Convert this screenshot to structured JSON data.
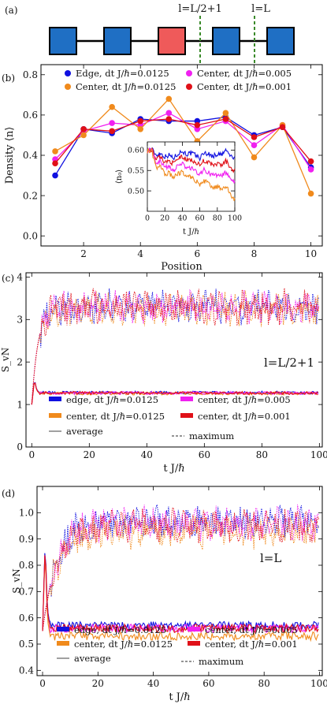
{
  "figure": {
    "panel_a_label": "(a)",
    "panel_b_label": "(b)",
    "panel_c_label": "(c)",
    "panel_d_label": "(d)",
    "marker_half": "l=L/2+1",
    "marker_end": "l=L"
  },
  "colors": {
    "site_blue": "#1f6fc4",
    "site_red": "#ef5a5a",
    "dashed_green": "#3a8a2a",
    "edge_blue": "#1010e0",
    "center_orange": "#f08a1c",
    "center_magenta": "#f020f0",
    "center_red": "#e01018",
    "average_gray": "#888888"
  },
  "chart_data": [
    {
      "type": "diagram",
      "sites": [
        "blue",
        "blue",
        "red",
        "blue",
        "blue"
      ],
      "markers": [
        "l=L/2+1",
        "l=L"
      ]
    },
    {
      "type": "line",
      "xlabel": "Position",
      "ylabel": "Density ⟨n⟩",
      "xlim": [
        0.5,
        10.4
      ],
      "ylim": [
        -0.05,
        0.85
      ],
      "xticks": [
        2,
        4,
        6,
        8,
        10
      ],
      "yticks": [
        0.0,
        0.2,
        0.4,
        0.6,
        0.8
      ],
      "legend_position": "top",
      "x": [
        1,
        2,
        3,
        4,
        5,
        6,
        7,
        8,
        9,
        10
      ],
      "series": [
        {
          "name": "Edge, dt J/ℏ=0.0125",
          "color": "#1010e0",
          "values": [
            0.3,
            0.53,
            0.51,
            0.58,
            0.57,
            0.57,
            0.59,
            0.5,
            0.54,
            0.34
          ]
        },
        {
          "name": "Center, dt J/ℏ=0.005",
          "color": "#f020f0",
          "values": [
            0.38,
            0.52,
            0.56,
            0.55,
            0.61,
            0.53,
            0.57,
            0.45,
            0.55,
            0.33
          ]
        },
        {
          "name": "Center, dt J/ℏ=0.0125",
          "color": "#f08a1c",
          "values": [
            0.42,
            0.5,
            0.64,
            0.53,
            0.68,
            0.47,
            0.61,
            0.39,
            0.55,
            0.21
          ]
        },
        {
          "name": "Center, dt J/ℏ=0.001",
          "color": "#e01018",
          "values": [
            0.36,
            0.53,
            0.52,
            0.57,
            0.58,
            0.55,
            0.58,
            0.49,
            0.54,
            0.37
          ]
        }
      ],
      "inset": {
        "type": "line",
        "xlabel": "t J/ℏ",
        "ylabel": "⟨n₀⟩",
        "xlim": [
          0,
          100
        ],
        "ylim": [
          0.45,
          0.62
        ],
        "xticks": [
          0,
          20,
          40,
          60,
          80,
          100
        ],
        "yticks": [
          0.5,
          0.55,
          0.6
        ],
        "x": [
          0,
          5,
          10,
          15,
          20,
          25,
          30,
          35,
          40,
          45,
          50,
          55,
          60,
          65,
          70,
          75,
          80,
          85,
          90,
          95,
          100
        ],
        "series": [
          {
            "name": "Edge, dt J/ℏ=0.0125",
            "color": "#1010e0",
            "values": [
              0.598,
              0.603,
              0.588,
              0.592,
              0.584,
              0.588,
              0.58,
              0.592,
              0.597,
              0.59,
              0.592,
              0.588,
              0.58,
              0.594,
              0.59,
              0.585,
              0.59,
              0.588,
              0.6,
              0.585,
              0.58
            ]
          },
          {
            "name": "Center, dt J/ℏ=0.001",
            "color": "#e01018",
            "values": [
              0.598,
              0.602,
              0.577,
              0.583,
              0.57,
              0.574,
              0.566,
              0.579,
              0.584,
              0.575,
              0.576,
              0.571,
              0.562,
              0.575,
              0.569,
              0.562,
              0.566,
              0.563,
              0.573,
              0.556,
              0.55
            ]
          },
          {
            "name": "Center, dt J/ℏ=0.005",
            "color": "#f020f0",
            "values": [
              0.598,
              0.6,
              0.567,
              0.573,
              0.556,
              0.56,
              0.55,
              0.562,
              0.566,
              0.556,
              0.556,
              0.55,
              0.54,
              0.552,
              0.545,
              0.537,
              0.54,
              0.536,
              0.545,
              0.528,
              0.52
            ]
          },
          {
            "name": "Center, dt J/ℏ=0.0125",
            "color": "#f08a1c",
            "values": [
              0.598,
              0.598,
              0.556,
              0.56,
              0.541,
              0.544,
              0.532,
              0.543,
              0.546,
              0.535,
              0.534,
              0.526,
              0.514,
              0.525,
              0.517,
              0.507,
              0.51,
              0.504,
              0.512,
              0.49,
              0.478
            ]
          }
        ]
      }
    },
    {
      "type": "line",
      "xlabel": "t J/ℏ",
      "ylabel": "S_vN",
      "annotation": "l=L/2+1",
      "xlim": [
        -2,
        101
      ],
      "ylim": [
        0,
        4.1
      ],
      "xticks": [
        0,
        20,
        40,
        60,
        80,
        100
      ],
      "yticks": [
        0,
        1,
        2,
        3,
        4
      ],
      "legend_position": "bottom",
      "line_style_legend": [
        "average",
        "maximum"
      ],
      "series": [
        {
          "name": "edge, dt J/ℏ=0.0125",
          "color": "#1010e0",
          "average_plateau": 1.28,
          "maximum_plateau": 3.3
        },
        {
          "name": "center, dt J/ℏ=0.0125",
          "color": "#f08a1c",
          "average_plateau": 1.26,
          "maximum_plateau": 3.25
        },
        {
          "name": "center, dt J/ℏ=0.005",
          "color": "#f020f0",
          "average_plateau": 1.27,
          "maximum_plateau": 3.3
        },
        {
          "name": "center, dt J/ℏ=0.001",
          "color": "#e01018",
          "average_plateau": 1.27,
          "maximum_plateau": 3.3
        }
      ]
    },
    {
      "type": "line",
      "xlabel": "t J/ℏ",
      "ylabel": "S_vN",
      "annotation": "l=L",
      "xlim": [
        -2,
        101
      ],
      "ylim": [
        0.38,
        1.1
      ],
      "xticks": [
        0,
        20,
        40,
        60,
        80,
        100
      ],
      "yticks": [
        0.4,
        0.5,
        0.6,
        0.7,
        0.8,
        0.9,
        1.0
      ],
      "legend_position": "bottom",
      "line_style_legend": [
        "average",
        "maximum"
      ],
      "series": [
        {
          "name": "edge, dt J/ℏ=0.0125",
          "color": "#1010e0",
          "average_plateau": 0.57,
          "maximum_plateau": 0.97
        },
        {
          "name": "center, dt J/ℏ=0.0125",
          "color": "#f08a1c",
          "average_plateau": 0.53,
          "maximum_plateau": 0.93
        },
        {
          "name": "center, dt J/ℏ=0.005",
          "color": "#f020f0",
          "average_plateau": 0.56,
          "maximum_plateau": 0.96
        },
        {
          "name": "center, dt J/ℏ=0.001",
          "color": "#e01018",
          "average_plateau": 0.56,
          "maximum_plateau": 0.95
        }
      ]
    }
  ]
}
